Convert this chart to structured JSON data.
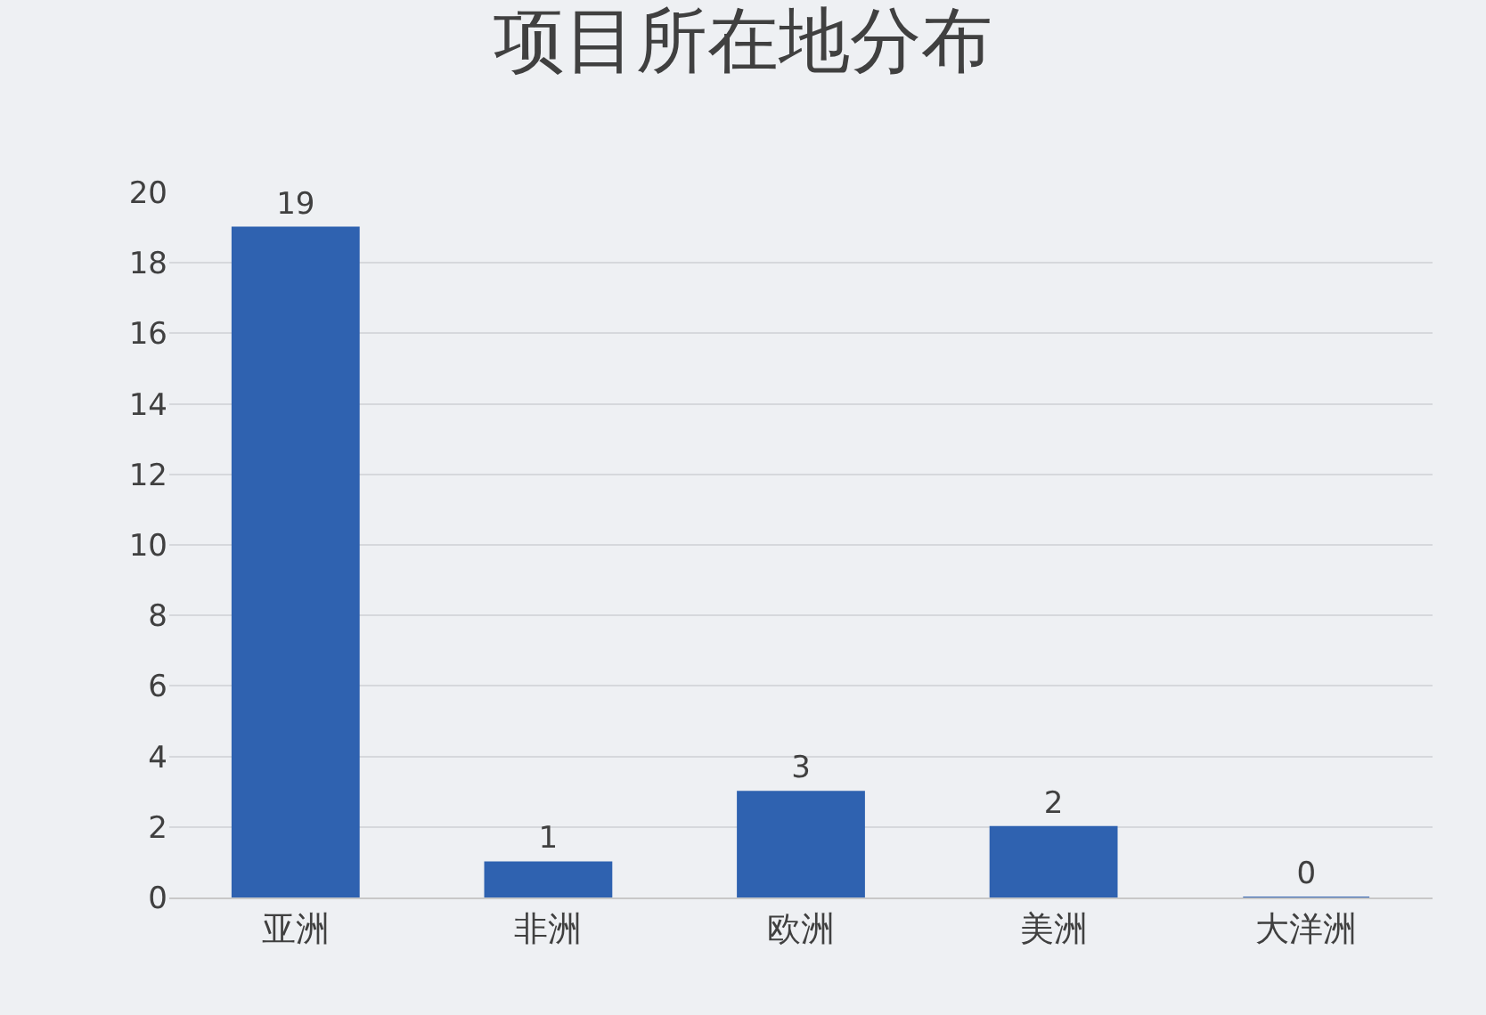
{
  "chart_data": {
    "type": "bar",
    "title": "项目所在地分布",
    "categories": [
      "亚洲",
      "非洲",
      "欧洲",
      "美洲",
      "大洋洲"
    ],
    "values": [
      19,
      1,
      3,
      2,
      0
    ],
    "color": "#2f62b0",
    "ylim": [
      0,
      20
    ],
    "yticks": [
      0,
      2,
      4,
      6,
      8,
      10,
      12,
      14,
      16,
      18,
      20
    ],
    "grid": "y",
    "data_labels": true
  }
}
